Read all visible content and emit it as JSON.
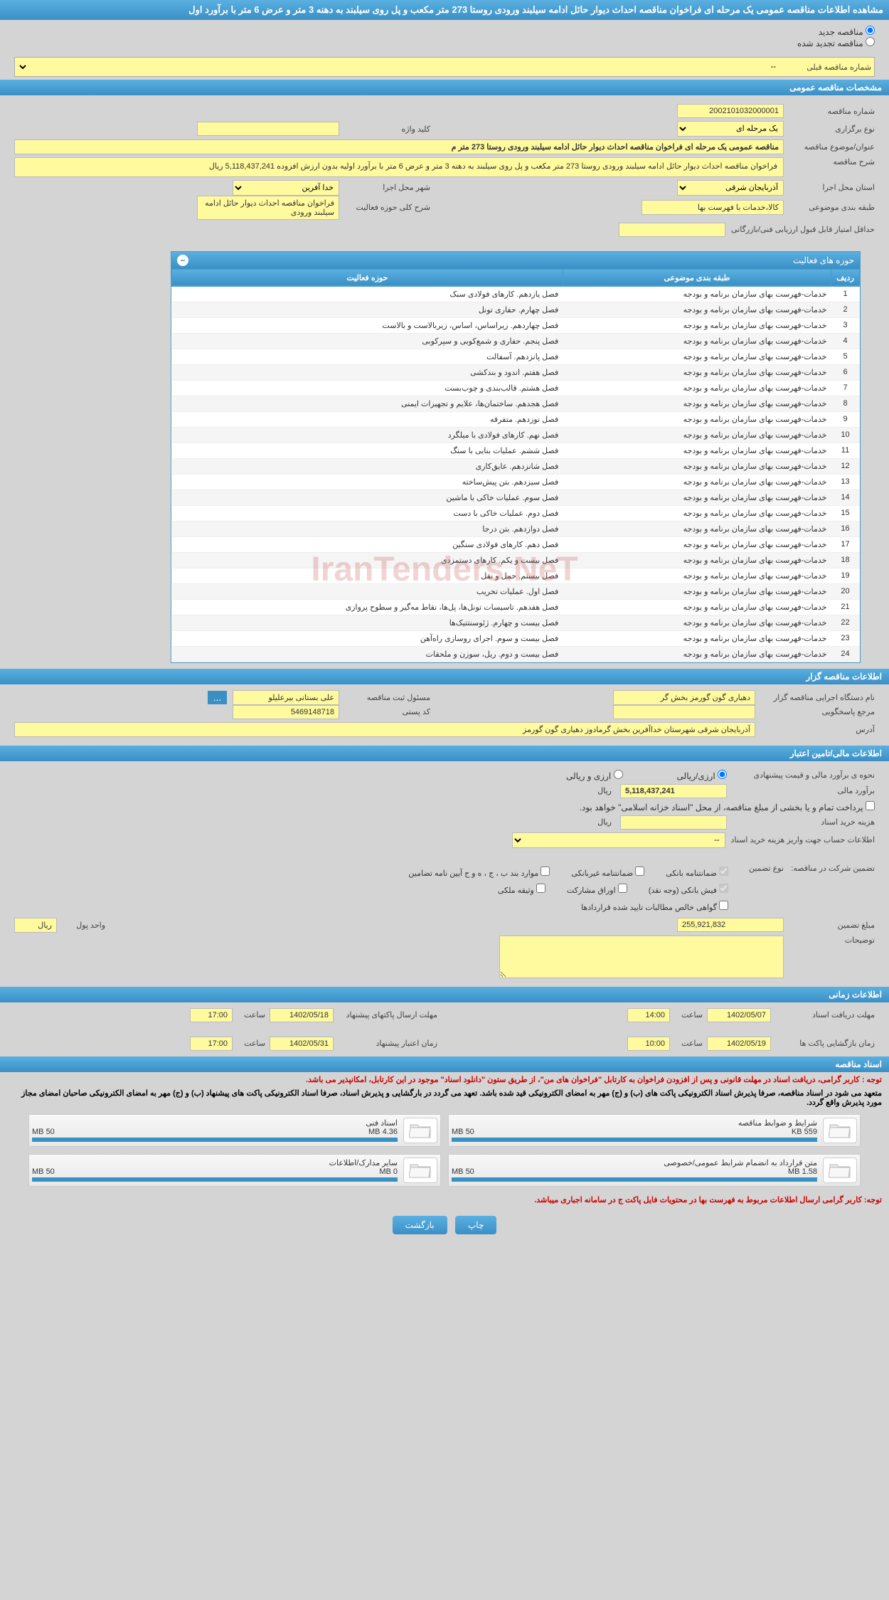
{
  "page_title": "مشاهده اطلاعات مناقصه عمومی یک مرحله ای فراخوان مناقصه احداث دیوار حائل ادامه سیلبند ورودی روستا 273 متر مکعب و پل روی سیلبند به دهنه 3 متر و عرض 6 متر با برآورد اول",
  "top": {
    "new_tender": "مناقصه جدید",
    "renewed_tender": "مناقصه تجدید شده",
    "prev_tender_label": "شماره مناقصه قبلی",
    "prev_tender_value": "--"
  },
  "sec1_title": "مشخصات مناقصه عمومی",
  "tender_no_label": "شماره مناقصه",
  "tender_no": "2002101032000001",
  "type_label": "نوع برگزاری",
  "type_value": "یک مرحله ای",
  "keyword_label": "کلید واژه",
  "keyword_value": "",
  "subject_label": "عنوان/موضوع مناقصه",
  "subject_value": "مناقصه عمومی یک مرحله ای فراخوان مناقصه احداث دیوار حائل ادامه سیلبند ورودی روستا 273 متر م",
  "desc_label": "شرح مناقصه",
  "desc_value": "فراخوان مناقصه احداث دیوار حائل ادامه سیلبند ورودی روستا 273 متر مکعب و پل روی سیلبند به دهنه 3 متر و عرض 6 متر با برآورد اولیه بدون ارزش افزوده 5,118,437,241 ریال",
  "province_label": "استان محل اجرا",
  "province_value": "آذربایجان شرقی",
  "city_label": "شهر محل اجرا",
  "city_value": "خدا آفرین",
  "category_label": "طبقه بندی موضوعی",
  "category_value": "کالا،خدمات با فهرست بها",
  "scope_label": "شرح کلی حوزه فعالیت",
  "scope_value": "فراخوان مناقصه احداث دیوار حائل ادامه سیلبند ورودی",
  "min_score_label": "حداقل امتیاز قابل قبول ارزیابی فنی/بازرگانی",
  "min_score_value": "",
  "activity_title": "حوزه های فعالیت",
  "activity_cols": {
    "row": "ردیف",
    "cat": "طبقه بندی موضوعی",
    "scope": "حوزه فعالیت"
  },
  "activity_rows": [
    {
      "n": 1,
      "c": "خدمات-فهرست بهای سازمان برنامه و بودجه",
      "s": "فصل یازدهم. کارهای فولادی سبک"
    },
    {
      "n": 2,
      "c": "خدمات-فهرست بهای سازمان برنامه و بودجه",
      "s": "فصل چهارم. حفاری تونل"
    },
    {
      "n": 3,
      "c": "خدمات-فهرست بهای سازمان برنامه و بودجه",
      "s": "فصل چهاردهم. زیراساس، اساس، زیربالاست و بالاست"
    },
    {
      "n": 4,
      "c": "خدمات-فهرست بهای سازمان برنامه و بودجه",
      "s": "فصل پنجم. حفاری و شمع‌کوبی و سپرکوبی"
    },
    {
      "n": 5,
      "c": "خدمات-فهرست بهای سازمان برنامه و بودجه",
      "s": "فصل پانزدهم. آسفالت"
    },
    {
      "n": 6,
      "c": "خدمات-فهرست بهای سازمان برنامه و بودجه",
      "s": "فصل هفتم. اندود و بندکشی"
    },
    {
      "n": 7,
      "c": "خدمات-فهرست بهای سازمان برنامه و بودجه",
      "s": "فصل هشتم. قالب‌بندی و چوب‌بست"
    },
    {
      "n": 8,
      "c": "خدمات-فهرست بهای سازمان برنامه و بودجه",
      "s": "فصل هجدهم. ساختمان‌ها، علایم و تجهیزات ایمنی"
    },
    {
      "n": 9,
      "c": "خدمات-فهرست بهای سازمان برنامه و بودجه",
      "s": "فصل نوزدهم. متفرقه"
    },
    {
      "n": 10,
      "c": "خدمات-فهرست بهای سازمان برنامه و بودجه",
      "s": "فصل نهم. کارهای فولادی با میلگرد"
    },
    {
      "n": 11,
      "c": "خدمات-فهرست بهای سازمان برنامه و بودجه",
      "s": "فصل ششم. عملیات بنایی با سنگ"
    },
    {
      "n": 12,
      "c": "خدمات-فهرست بهای سازمان برنامه و بودجه",
      "s": "فصل شانزدهم. عایق‌کاری"
    },
    {
      "n": 13,
      "c": "خدمات-فهرست بهای سازمان برنامه و بودجه",
      "s": "فصل سیزدهم. بتن پیش‌ساخته"
    },
    {
      "n": 14,
      "c": "خدمات-فهرست بهای سازمان برنامه و بودجه",
      "s": "فصل سوم. عملیات خاکی با ماشین"
    },
    {
      "n": 15,
      "c": "خدمات-فهرست بهای سازمان برنامه و بودجه",
      "s": "فصل دوم. عملیات خاکی با دست"
    },
    {
      "n": 16,
      "c": "خدمات-فهرست بهای سازمان برنامه و بودجه",
      "s": "فصل دوازدهم. بتن درجا"
    },
    {
      "n": 17,
      "c": "خدمات-فهرست بهای سازمان برنامه و بودجه",
      "s": "فصل دهم. کارهای فولادی سنگین"
    },
    {
      "n": 18,
      "c": "خدمات-فهرست بهای سازمان برنامه و بودجه",
      "s": "فصل بیست و یکم. کارهای دستمزدی"
    },
    {
      "n": 19,
      "c": "خدمات-فهرست بهای سازمان برنامه و بودجه",
      "s": "فصل بیستم. حمل و نقل"
    },
    {
      "n": 20,
      "c": "خدمات-فهرست بهای سازمان برنامه و بودجه",
      "s": "فصل اول. عملیات تخریب"
    },
    {
      "n": 21,
      "c": "خدمات-فهرست بهای سازمان برنامه و بودجه",
      "s": "فصل هفدهم. تاسیسات تونل‌ها، پل‌ها، نقاط مه‌گیر و سطوح پروازی"
    },
    {
      "n": 22,
      "c": "خدمات-فهرست بهای سازمان برنامه و بودجه",
      "s": "فصل بیست و چهارم. ژئوسنتتیک‌ها"
    },
    {
      "n": 23,
      "c": "خدمات-فهرست بهای سازمان برنامه و بودجه",
      "s": "فصل بیست و سوم. اجرای روسازی راه‌آهن"
    },
    {
      "n": 24,
      "c": "خدمات-فهرست بهای سازمان برنامه و بودجه",
      "s": "فصل بیست و دوم. ریل، سوزن و ملحقات"
    }
  ],
  "sec2_title": "اطلاعات مناقصه گزار",
  "org_name_label": "نام دستگاه اجرایی مناقصه گزار",
  "org_name": "دهیاری گون گورمز بخش گر",
  "reg_resp_label": "مسئول ثبت مناقصه",
  "reg_resp": "علی بستانی بیرعلیلو",
  "responder_label": "مرجع پاسخگویی",
  "responder": "",
  "postal_label": "کد پستی",
  "postal": "5469148718",
  "address_label": "آدرس",
  "address": "آذربایجان شرقی شهرستان خداآفرین بخش گرمادوز دهیاری گون گورمز",
  "sec3_title": "اطلاعات مالی/تامین اعتبار",
  "est_method_label": "نحوه ی برآورد مالی و قیمت پیشنهادی",
  "est_opt1": "ارزی/ریالی",
  "est_opt2": "ارزی و ریالی",
  "est_amount_label": "برآورد مالی",
  "est_amount": "5,118,437,241",
  "rial": "ریال",
  "payment_note": "پرداخت تمام و یا بخشی از مبلغ مناقصه، از محل \"اسناد خزانه اسلامی\" خواهد بود.",
  "doc_fee_label": "هزینه خرید اسناد",
  "doc_fee": "",
  "deposit_info_label": "اطلاعات حساب جهت واریز هزینه خرید اسناد",
  "deposit_value": "--",
  "guarantee_label": "تضمین شرکت در مناقصه:",
  "guarantee_type_label": "نوع تضمین",
  "g1": "ضمانتنامه بانکی",
  "g2": "ضمانتنامه غیربانکی",
  "g3": "موارد بند ب ، ج ، ه و ح آیین نامه تضامین",
  "g4": "فیش بانکی (وجه نقد)",
  "g5": "اوراق مشارکت",
  "g6": "وثیقه ملکی",
  "g7": "گواهی خالص مطالبات تایید شده قراردادها",
  "guarantee_amount_label": "مبلغ تضمین",
  "guarantee_amount": "255,921,832",
  "unit_label": "واحد پول",
  "unit_value": "ریال",
  "remarks_label": "توضیحات",
  "sec4_title": "اطلاعات زمانی",
  "deadline_docs_label": "مهلت دریافت اسناد",
  "deadline_docs_date": "1402/05/07",
  "time_label": "ساعت",
  "deadline_docs_time": "14:00",
  "deadline_bids_label": "مهلت ارسال پاکتهای پیشنهاد",
  "deadline_bids_date": "1402/05/18",
  "deadline_bids_time": "17:00",
  "opening_label": "زمان بازگشایی پاکت ها",
  "opening_date": "1402/05/19",
  "opening_time": "10:00",
  "validity_label": "زمان اعتبار پیشنهاد",
  "validity_date": "1402/05/31",
  "validity_time": "17:00",
  "sec5_title": "اسناد مناقصه",
  "note1": "توجه : کاربر گرامی، دریافت اسناد در مهلت قانونی و پس از افزودن فراخوان به کارتابل \"فراخوان های من\"، از طریق ستون \"دانلود اسناد\" موجود در این کارتابل، امکانپذیر می باشد.",
  "note2": "متعهد می شود در اسناد مناقصه، صرفا پذیرش اسناد الکترونیکی پاکت های (ب) و (ج) مهر به امضای الکترونیکی قید شده باشد. تعهد می گردد در بارگشایی و پذیرش اسناد، صرفا اسناد الکترونیکی پاکت های پیشنهاد (ب) و (ج) مهر به امضای الکترونیکی صاحبان امضای مجاز مورد پذیرش واقع گردد.",
  "docs": [
    {
      "title": "شرایط و ضوابط مناقصه",
      "size": "559 KB",
      "max": "50 MB"
    },
    {
      "title": "اسناد فنی",
      "size": "4.36 MB",
      "max": "50 MB"
    },
    {
      "title": "متن قرارداد به انضمام شرایط عمومی/خصوصی",
      "size": "1.58 MB",
      "max": "50 MB"
    },
    {
      "title": "سایر مدارک/اطلاعات",
      "size": "0 MB",
      "max": "50 MB"
    }
  ],
  "note3": "توجه: کاربر گرامی ارسال اطلاعات مربوط به فهرست بها در محتویات فایل پاکت ج در سامانه اجباری میباشد.",
  "btn_print": "چاپ",
  "btn_back": "بازگشت",
  "watermark": "IranTenders.NeT"
}
